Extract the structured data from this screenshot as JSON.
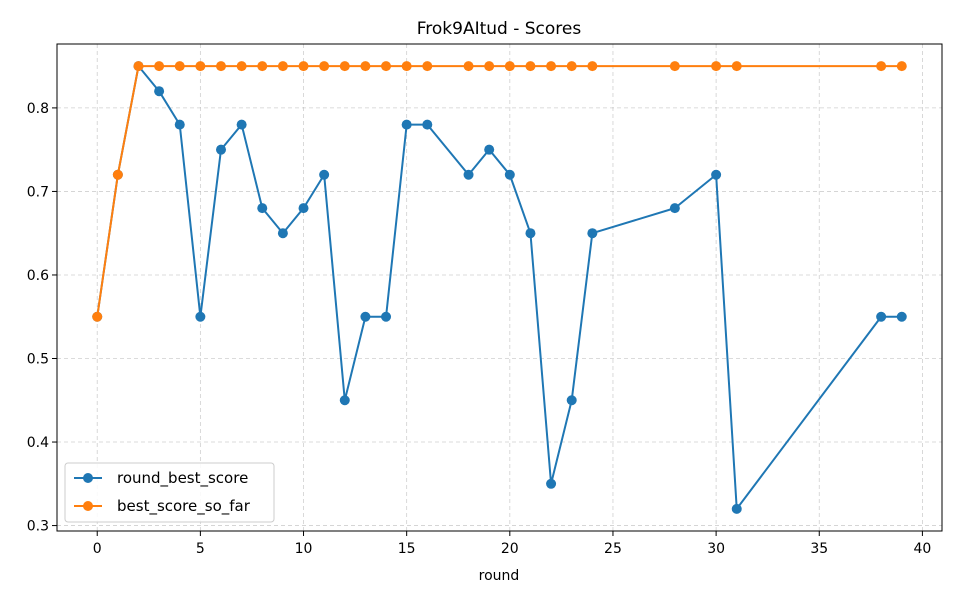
{
  "chart_data": {
    "type": "line",
    "title": "Frok9AItud - Scores",
    "xlabel": "round",
    "ylabel": "",
    "xlim": [
      -1.95,
      40.95
    ],
    "ylim": [
      0.2935,
      0.8765
    ],
    "xticks": [
      0,
      5,
      10,
      15,
      20,
      25,
      30,
      35,
      40
    ],
    "yticks": [
      0.3,
      0.4,
      0.5,
      0.6,
      0.7,
      0.8
    ],
    "grid": true,
    "legend_position": "lower-left",
    "series": [
      {
        "name": "round_best_score",
        "color": "#1f77b4",
        "marker": "circle",
        "x": [
          0,
          1,
          2,
          3,
          4,
          5,
          6,
          7,
          8,
          9,
          10,
          11,
          12,
          13,
          14,
          15,
          16,
          18,
          19,
          20,
          21,
          22,
          23,
          24,
          28,
          30,
          31,
          38,
          39
        ],
        "y": [
          0.55,
          0.72,
          0.85,
          0.82,
          0.78,
          0.55,
          0.75,
          0.78,
          0.68,
          0.65,
          0.68,
          0.72,
          0.45,
          0.55,
          0.55,
          0.78,
          0.78,
          0.72,
          0.75,
          0.72,
          0.65,
          0.35,
          0.45,
          0.65,
          0.68,
          0.72,
          0.32,
          0.55,
          0.55
        ]
      },
      {
        "name": "best_score_so_far",
        "color": "#ff7f0e",
        "marker": "circle",
        "x": [
          0,
          1,
          2,
          3,
          4,
          5,
          6,
          7,
          8,
          9,
          10,
          11,
          12,
          13,
          14,
          15,
          16,
          18,
          19,
          20,
          21,
          22,
          23,
          24,
          28,
          30,
          31,
          38,
          39
        ],
        "y": [
          0.55,
          0.72,
          0.85,
          0.85,
          0.85,
          0.85,
          0.85,
          0.85,
          0.85,
          0.85,
          0.85,
          0.85,
          0.85,
          0.85,
          0.85,
          0.85,
          0.85,
          0.85,
          0.85,
          0.85,
          0.85,
          0.85,
          0.85,
          0.85,
          0.85,
          0.85,
          0.85,
          0.85,
          0.85
        ]
      }
    ]
  }
}
